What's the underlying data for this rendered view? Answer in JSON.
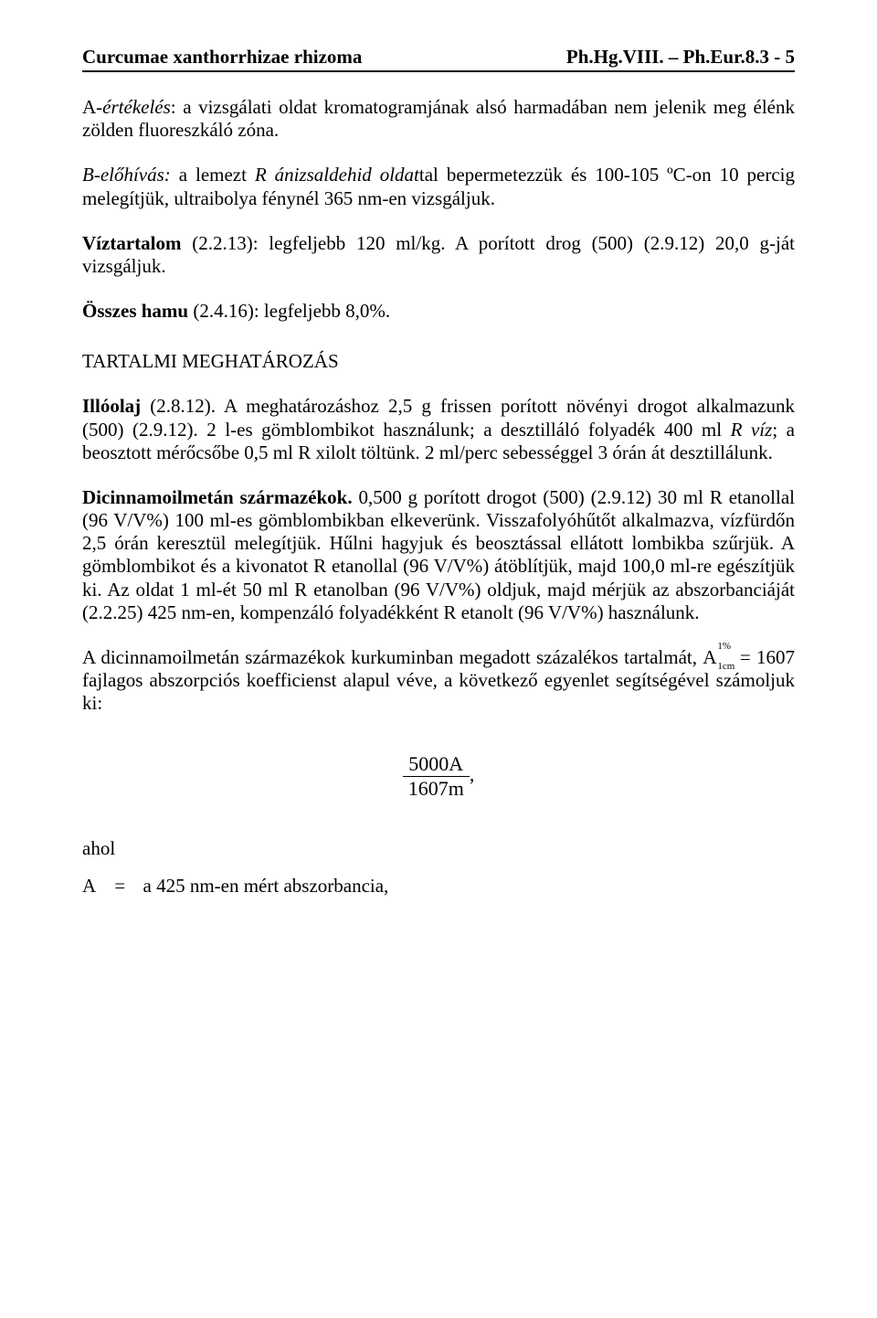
{
  "header": {
    "left": "Curcumae xanthorrhizae rhizoma",
    "right": "Ph.Hg.VIII. – Ph.Eur.8.3 - 5"
  },
  "p1": {
    "pre": "A-",
    "em": "értékelés",
    "rest": ": a vizsgálati oldat kromatogramjának alsó harmadában nem jelenik meg élénk zölden fluoreszkáló zóna."
  },
  "p2": {
    "em": "B-előhívás: ",
    "rest1": "a lemezt ",
    "em2": "R ánizsaldehid oldat",
    "rest2": "tal bepermetezzük és 100-105 ºC-on 10 percig melegítjük, ultraibolya fénynél 365 nm-en vizsgáljuk."
  },
  "p3": {
    "term": "Víztartalom ",
    "rest": "(2.2.13): legfeljebb 120 ml/kg. A porított drog (500) (2.9.12) 20,0 g-ját vizsgáljuk."
  },
  "p4": {
    "term": "Összes hamu ",
    "rest": "(2.4.16): legfeljebb 8,0%."
  },
  "section": "TARTALMI MEGHATÁROZÁS",
  "p5": {
    "term": "Illóolaj ",
    "rest1": "(2.8.12). A meghatározáshoz 2,5 g frissen porított növényi drogot alkalmazunk (500) (2.9.12). 2 l-es gömblombikot használunk; a desztilláló folyadék 400 ml ",
    "em": "R víz",
    "rest2": "; a beosztott mérőcsőbe 0,5 ml R xilolt töltünk. 2 ml/perc sebességgel 3 órán át desztillálunk."
  },
  "p6": {
    "term": "Dicinnamoilmetán származékok. ",
    "rest": "0,500 g porított drogot (500) (2.9.12) 30 ml R etanollal (96 V/V%) 100 ml-es gömblombikban elkeverünk. Visszafolyóhűtőt alkalmazva, vízfürdőn 2,5 órán keresztül melegítjük. Hűlni hagyjuk és beosztással ellátott lombikba szűrjük. A gömblombikot és a kivonatot R etanollal (96 V/V%) átöblítjük, majd 100,0 ml-re egészítjük ki. Az oldat 1 ml-ét 50 ml R etanolban (96 V/V%) oldjuk, majd mérjük az abszorbanciáját (2.2.25) 425 nm-en, kompenzáló folyadékként R etanolt (96 V/V%) használunk."
  },
  "p7": {
    "pre": "A dicinnamoilmetán származékok kurkuminban megadott százalékos tartalmát, ",
    "coef_sup": "1%",
    "coef_sub": "1cm",
    "mid": " = 1607 fajlagos abszorpciós koefficienst alapul véve, a következő egyenlet segítségével számoljuk ki:"
  },
  "formula": {
    "num": "5000A",
    "den": "1607m",
    "suffix": ","
  },
  "ahol": "ahol",
  "def": {
    "sym": "A",
    "eq": "=",
    "text": "a 425 nm-en mért abszorbancia,"
  }
}
